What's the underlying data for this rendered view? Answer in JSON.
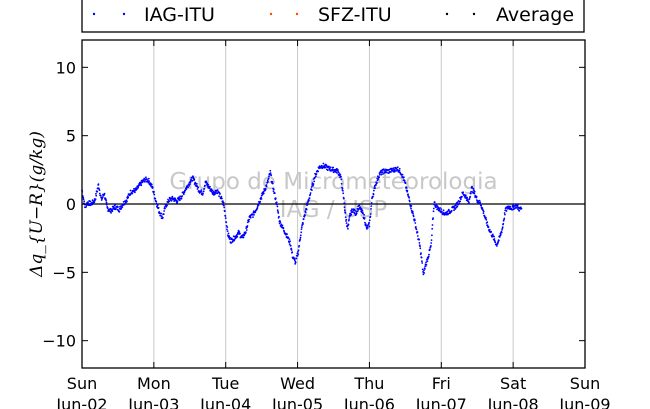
{
  "chart_data": {
    "type": "scatter",
    "ylabel": "Δq_{U−R}(g/kg)",
    "ylim": [
      -12,
      12
    ],
    "yticks": [
      10,
      5,
      0,
      -5,
      -10
    ],
    "ytick_labels": [
      "10",
      "5",
      "0",
      "−5",
      "−10"
    ],
    "x_domain_days": [
      0,
      7
    ],
    "xticks": [
      {
        "day": "Sun",
        "date": "Jun-02"
      },
      {
        "day": "Mon",
        "date": "Jun-03"
      },
      {
        "day": "Tue",
        "date": "Jun-04"
      },
      {
        "day": "Wed",
        "date": "Jun-05"
      },
      {
        "day": "Thu",
        "date": "Jun-06"
      },
      {
        "day": "Fri",
        "date": "Jun-07"
      },
      {
        "day": "Sat",
        "date": "Jun-08"
      },
      {
        "day": "Sun",
        "date": "Jun-09"
      }
    ],
    "grid": "vertical",
    "zero_line": true,
    "legend": {
      "placement": "top",
      "entries": [
        {
          "label": "IAG-ITU",
          "color": "#0000ff"
        },
        {
          "label": "SFZ-ITU",
          "color": "#ff4500"
        },
        {
          "label": "Average",
          "color": "#000000"
        }
      ]
    },
    "watermark": [
      "Grupo de Micrometeorologia",
      "IAG / USP"
    ],
    "series": [
      {
        "name": "IAG-ITU",
        "color": "#0000ff",
        "points": [
          [
            0.0,
            1.0
          ],
          [
            0.04,
            -0.2
          ],
          [
            0.08,
            0.1
          ],
          [
            0.13,
            0.0
          ],
          [
            0.18,
            0.3
          ],
          [
            0.23,
            1.4
          ],
          [
            0.27,
            0.3
          ],
          [
            0.31,
            0.8
          ],
          [
            0.35,
            -0.3
          ],
          [
            0.4,
            -0.5
          ],
          [
            0.46,
            -0.2
          ],
          [
            0.52,
            -0.4
          ],
          [
            0.57,
            0.0
          ],
          [
            0.62,
            0.3
          ],
          [
            0.68,
            0.9
          ],
          [
            0.75,
            1.0
          ],
          [
            0.82,
            1.5
          ],
          [
            0.88,
            1.8
          ],
          [
            0.93,
            1.7
          ],
          [
            0.98,
            1.2
          ],
          [
            1.02,
            0.4
          ],
          [
            1.07,
            -0.5
          ],
          [
            1.12,
            -1.0
          ],
          [
            1.16,
            -0.2
          ],
          [
            1.21,
            0.3
          ],
          [
            1.27,
            0.4
          ],
          [
            1.32,
            0.2
          ],
          [
            1.38,
            0.5
          ],
          [
            1.43,
            1.0
          ],
          [
            1.49,
            1.5
          ],
          [
            1.54,
            1.9
          ],
          [
            1.59,
            1.4
          ],
          [
            1.63,
            1.0
          ],
          [
            1.68,
            0.8
          ],
          [
            1.72,
            1.6
          ],
          [
            1.77,
            1.2
          ],
          [
            1.83,
            0.8
          ],
          [
            1.88,
            1.0
          ],
          [
            1.93,
            0.5
          ],
          [
            1.97,
            0.0
          ],
          [
            2.0,
            -1.0
          ],
          [
            2.03,
            -2.2
          ],
          [
            2.07,
            -2.7
          ],
          [
            2.12,
            -2.5
          ],
          [
            2.18,
            -2.1
          ],
          [
            2.23,
            -2.5
          ],
          [
            2.28,
            -2.0
          ],
          [
            2.33,
            -1.0
          ],
          [
            2.38,
            -0.8
          ],
          [
            2.43,
            -0.3
          ],
          [
            2.47,
            0.2
          ],
          [
            2.53,
            0.9
          ],
          [
            2.58,
            1.5
          ],
          [
            2.62,
            2.3
          ],
          [
            2.66,
            1.2
          ],
          [
            2.71,
            0.0
          ],
          [
            2.75,
            -1.3
          ],
          [
            2.8,
            -1.8
          ],
          [
            2.85,
            -2.3
          ],
          [
            2.9,
            -2.9
          ],
          [
            2.93,
            -3.8
          ],
          [
            2.97,
            -4.3
          ],
          [
            3.01,
            -3.5
          ],
          [
            3.05,
            -2.0
          ],
          [
            3.09,
            -1.0
          ],
          [
            3.14,
            0.0
          ],
          [
            3.19,
            1.0
          ],
          [
            3.24,
            2.0
          ],
          [
            3.3,
            2.7
          ],
          [
            3.36,
            2.8
          ],
          [
            3.43,
            2.6
          ],
          [
            3.5,
            2.5
          ],
          [
            3.56,
            2.4
          ],
          [
            3.6,
            2.0
          ],
          [
            3.64,
            0.5
          ],
          [
            3.67,
            -1.0
          ],
          [
            3.7,
            -1.8
          ],
          [
            3.73,
            -0.8
          ],
          [
            3.77,
            -0.4
          ],
          [
            3.81,
            -0.7
          ],
          [
            3.85,
            -0.2
          ],
          [
            3.89,
            -0.5
          ],
          [
            3.93,
            -1.0
          ],
          [
            3.96,
            -1.8
          ],
          [
            4.0,
            -1.5
          ],
          [
            4.04,
            0.5
          ],
          [
            4.09,
            1.5
          ],
          [
            4.14,
            2.2
          ],
          [
            4.2,
            2.4
          ],
          [
            4.27,
            2.4
          ],
          [
            4.34,
            2.5
          ],
          [
            4.39,
            2.6
          ],
          [
            4.44,
            2.3
          ],
          [
            4.48,
            1.8
          ],
          [
            4.52,
            1.0
          ],
          [
            4.57,
            0.0
          ],
          [
            4.62,
            -1.0
          ],
          [
            4.66,
            -2.0
          ],
          [
            4.7,
            -3.0
          ],
          [
            4.73,
            -4.2
          ],
          [
            4.75,
            -5.2
          ],
          [
            4.78,
            -4.5
          ],
          [
            4.82,
            -3.8
          ],
          [
            4.86,
            -3.0
          ],
          [
            4.9,
            0.1
          ],
          [
            4.95,
            -0.3
          ],
          [
            5.0,
            -0.5
          ],
          [
            5.05,
            -0.7
          ],
          [
            5.1,
            -0.6
          ],
          [
            5.15,
            -0.4
          ],
          [
            5.2,
            -0.2
          ],
          [
            5.25,
            0.2
          ],
          [
            5.3,
            0.8
          ],
          [
            5.35,
            0.5
          ],
          [
            5.38,
            0.0
          ],
          [
            5.42,
            1.2
          ],
          [
            5.46,
            0.8
          ],
          [
            5.5,
            0.3
          ],
          [
            5.55,
            0.0
          ],
          [
            5.6,
            -0.8
          ],
          [
            5.64,
            -1.5
          ],
          [
            5.68,
            -2.0
          ],
          [
            5.73,
            -2.5
          ],
          [
            5.77,
            -3.0
          ],
          [
            5.81,
            -2.5
          ],
          [
            5.85,
            -1.8
          ],
          [
            5.89,
            -0.5
          ],
          [
            5.94,
            -0.2
          ],
          [
            5.99,
            -0.3
          ],
          [
            6.04,
            -0.1
          ],
          [
            6.09,
            -0.4
          ],
          [
            6.12,
            -0.3
          ]
        ]
      }
    ]
  }
}
